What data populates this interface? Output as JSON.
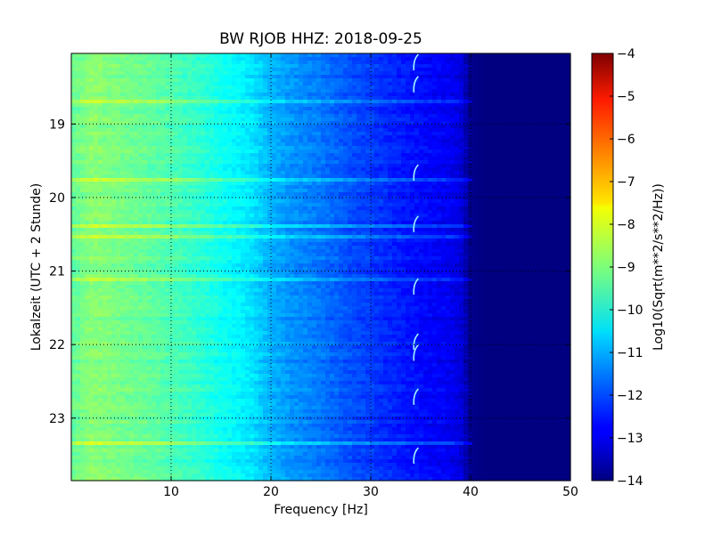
{
  "chart_data": {
    "type": "heatmap",
    "title": "BW RJOB HHZ: 2018-09-25",
    "xlabel": "Frequency [Hz]",
    "ylabel": "Lokalzeit (UTC + 2 Stunde)",
    "colorbar_label": "Log10(Sqrt(m**2/s**2/Hz))",
    "colormap": "jet",
    "xlim": [
      0,
      50
    ],
    "ylim_hours": [
      18.04,
      23.85
    ],
    "y_inverted": true,
    "x_ticks": [
      10,
      20,
      30,
      40,
      50
    ],
    "x_tick_labels": [
      "10",
      "20",
      "30",
      "40",
      "50"
    ],
    "y_ticks": [
      19,
      20,
      21,
      22,
      23
    ],
    "y_tick_labels": [
      "19",
      "20",
      "21",
      "22",
      "23"
    ],
    "color_range": [
      -14,
      -4
    ],
    "colorbar_ticks": [
      -4,
      -5,
      -6,
      -7,
      -8,
      -9,
      -10,
      -11,
      -12,
      -13,
      -14
    ],
    "colorbar_tick_labels": [
      "−4",
      "−5",
      "−6",
      "−7",
      "−8",
      "−9",
      "−10",
      "−11",
      "−12",
      "−13",
      "−14"
    ],
    "grid": true,
    "grid_style": "dotted",
    "profile": {
      "frequency_hz": [
        0,
        2,
        5,
        8,
        10,
        12,
        15,
        18,
        20,
        22,
        25,
        28,
        30,
        33,
        35,
        38,
        39,
        40,
        42,
        45,
        50
      ],
      "log_psd": [
        -9.3,
        -8.9,
        -9.1,
        -9.3,
        -9.5,
        -9.7,
        -10.1,
        -10.5,
        -11.0,
        -11.3,
        -11.6,
        -12.0,
        -12.2,
        -12.5,
        -12.7,
        -12.9,
        -13.1,
        -13.9,
        -14.0,
        -14.0,
        -14.0
      ]
    },
    "bright_bands_hours": [
      20.4,
      20.55,
      21.1,
      19.75,
      18.7,
      23.35
    ],
    "tone_frequency_hz": 34.5
  }
}
